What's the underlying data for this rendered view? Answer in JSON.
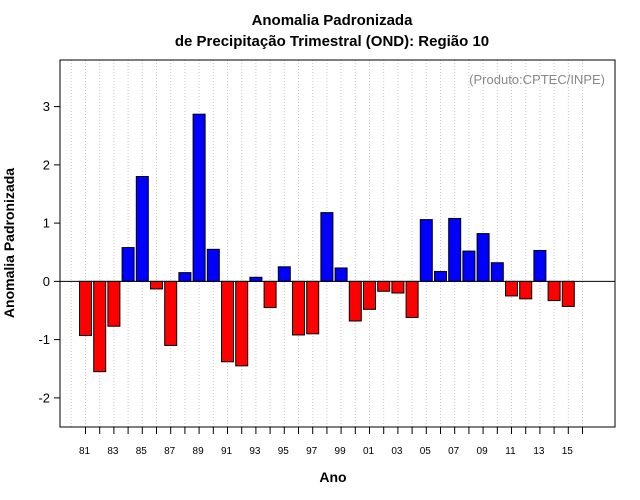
{
  "chart_data": {
    "type": "bar",
    "title": "Anomalia Padronizada",
    "subtitle": "de Precipitação Trimestral (OND): Região 10",
    "xlabel": "Ano",
    "ylabel": "Anomalia Padronizada",
    "credit": "(Produto:CPTEC/INPE)",
    "ylim": [
      -2.5,
      3.8
    ],
    "yticks": [
      -2,
      -1,
      0,
      1,
      2,
      3
    ],
    "xtick_labels": [
      "81",
      "83",
      "85",
      "87",
      "89",
      "91",
      "93",
      "95",
      "97",
      "99",
      "01",
      "03",
      "05",
      "07",
      "09",
      "11",
      "13",
      "15"
    ],
    "categories": [
      "1981",
      "1982",
      "1983",
      "1984",
      "1985",
      "1986",
      "1987",
      "1988",
      "1989",
      "1990",
      "1991",
      "1992",
      "1993",
      "1994",
      "1995",
      "1996",
      "1997",
      "1998",
      "1999",
      "2000",
      "2001",
      "2002",
      "2003",
      "2004",
      "2005",
      "2006",
      "2007",
      "2008",
      "2009",
      "2010",
      "2011",
      "2012",
      "2013",
      "2014",
      "2015"
    ],
    "values": [
      -0.93,
      -1.55,
      -0.77,
      0.58,
      1.8,
      -0.13,
      -1.1,
      0.15,
      2.87,
      0.55,
      -1.38,
      -1.45,
      0.07,
      -0.45,
      0.25,
      -0.92,
      -0.9,
      1.18,
      0.23,
      -0.68,
      -0.48,
      -0.17,
      -0.2,
      -0.62,
      1.06,
      0.17,
      1.08,
      0.52,
      0.82,
      0.32,
      -0.25,
      -0.3,
      0.53,
      -0.33,
      -0.43
    ],
    "colors": {
      "positive": "#0000ff",
      "negative": "#ff0000",
      "grid": "#c8c8c8"
    },
    "grid": true
  }
}
